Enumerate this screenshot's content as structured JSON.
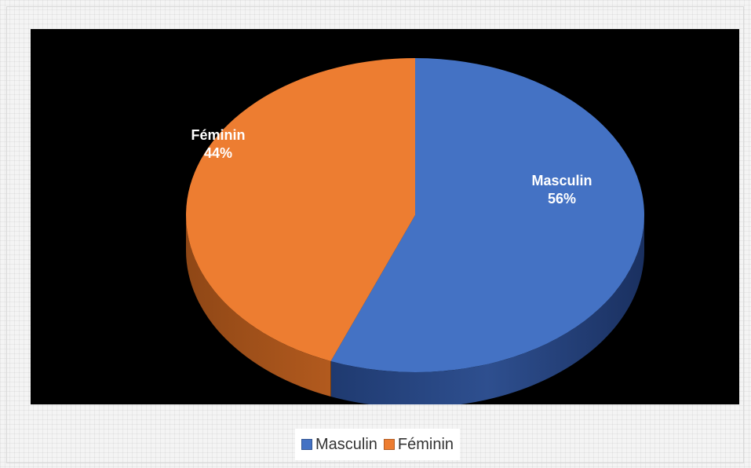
{
  "chart_data": {
    "type": "pie",
    "style": "3d",
    "title": "",
    "slices": [
      {
        "label": "Masculin",
        "value": 56,
        "display": "56%",
        "color": "#4472C4"
      },
      {
        "label": "Féminin",
        "value": 44,
        "display": "44%",
        "color": "#ED7D31"
      }
    ],
    "legend": {
      "position": "bottom",
      "items": [
        "Masculin",
        "Féminin"
      ]
    },
    "background_color": "#000000"
  }
}
